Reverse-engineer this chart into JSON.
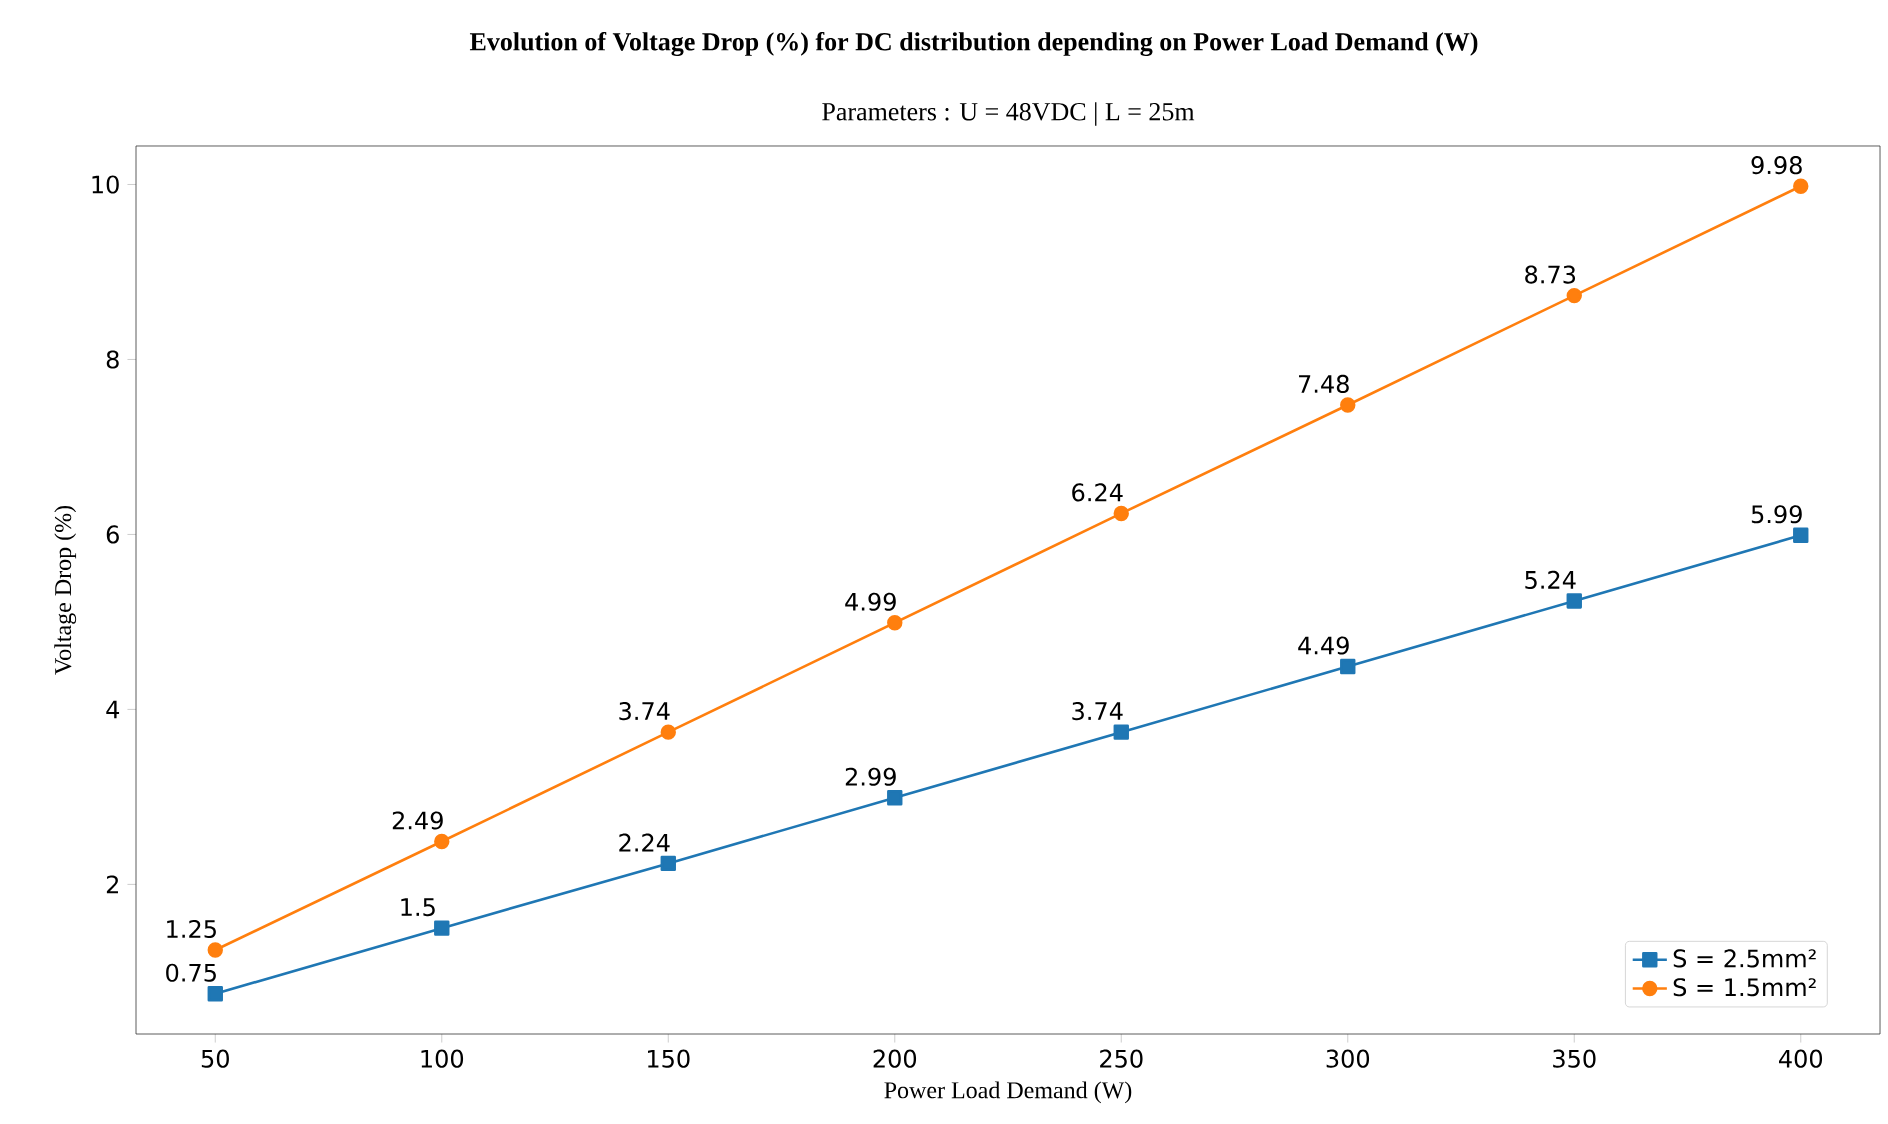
{
  "chart_data": {
    "type": "line",
    "title": "Evolution of Voltage Drop (%) for DC distribution depending on Power Load Demand (W)",
    "subtitle": "Parameters : U = 48VDC | L = 25m",
    "xlabel": "Power Load Demand (W)",
    "ylabel": "Voltage Drop (%)",
    "x": [
      50,
      100,
      150,
      200,
      250,
      300,
      350,
      400
    ],
    "series": [
      {
        "name": "S = 2.5mm²",
        "color": "#1f77b4",
        "marker": "square",
        "values": [
          0.75,
          1.5,
          2.24,
          2.99,
          3.74,
          4.49,
          5.24,
          5.99
        ],
        "value_labels": [
          "0.75",
          "1.5",
          "2.24",
          "2.99",
          "3.74",
          "4.49",
          "5.24",
          "5.99"
        ]
      },
      {
        "name": "S = 1.5mm²",
        "color": "#ff7f0e",
        "marker": "circle",
        "values": [
          1.25,
          2.49,
          3.74,
          4.99,
          6.24,
          7.48,
          8.73,
          9.98
        ],
        "value_labels": [
          "1.25",
          "2.49",
          "3.74",
          "4.99",
          "6.24",
          "7.48",
          "8.73",
          "9.98"
        ]
      }
    ],
    "xlim": [
      32.5,
      417.5
    ],
    "ylim": [
      0.29,
      10.44
    ],
    "xticks": [
      50,
      100,
      150,
      200,
      250,
      300,
      350,
      400
    ],
    "yticks": [
      2,
      4,
      6,
      8,
      10
    ],
    "grid": false,
    "legend": "bottom right"
  }
}
